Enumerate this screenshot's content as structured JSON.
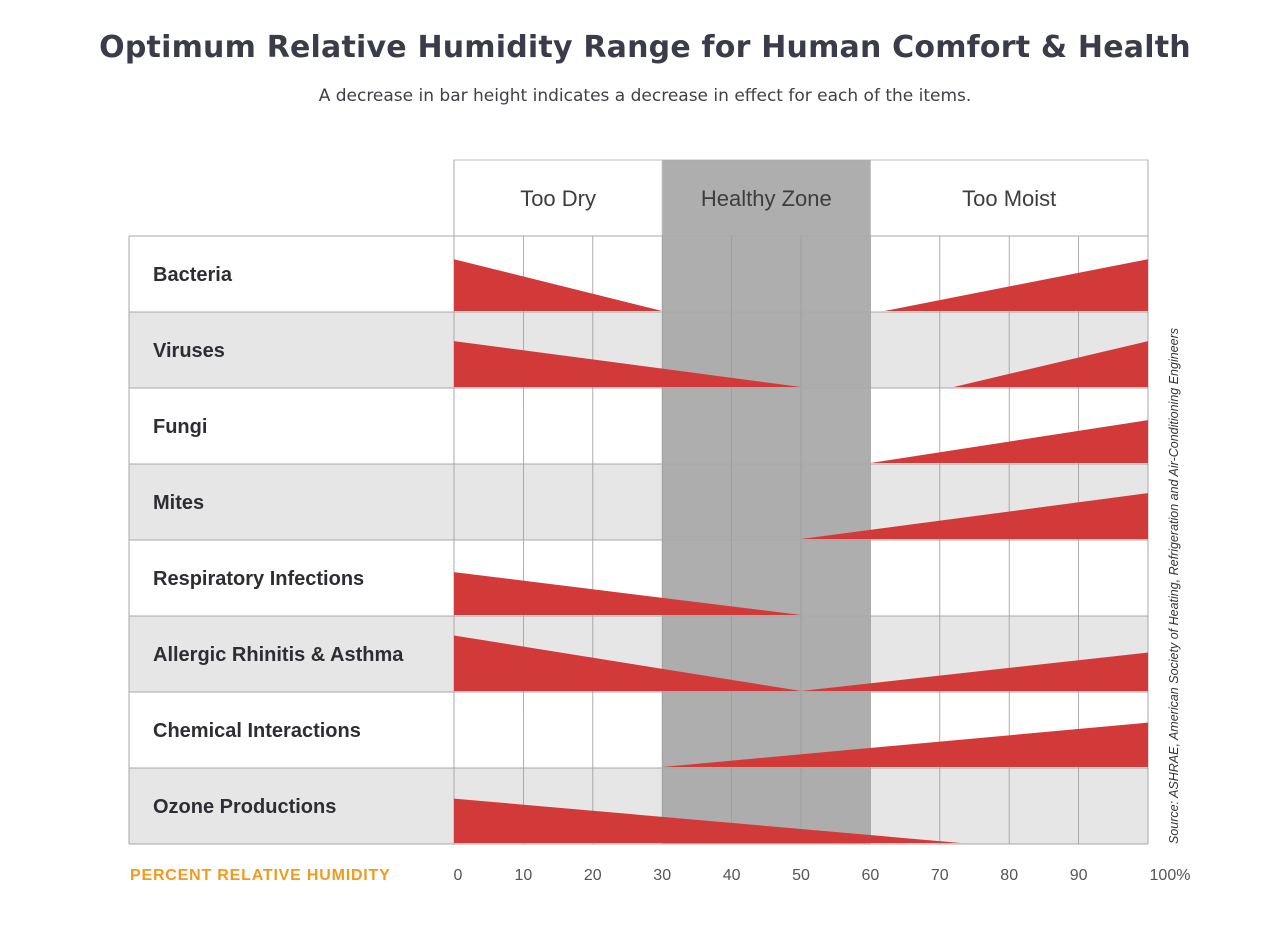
{
  "title": "Optimum Relative Humidity Range for Human Comfort & Health",
  "subtitle": "A decrease in bar height indicates a decrease in effect for each of the items.",
  "source": "Source: ASHRAE, American Society of Heating, Refrigeration and Air-Conditioning Engineers",
  "colors": {
    "bar": "#d23a3a",
    "healthy_zone": "#aaaaaa",
    "x_axis_label": "#f39a1e",
    "row_alt": "#e6e6e6"
  },
  "chart_data": {
    "type": "bar",
    "xlabel": "PERCENT RELATIVE HUMIDITY",
    "xlim": [
      0,
      100
    ],
    "x_ticks": [
      "0",
      "10",
      "20",
      "30",
      "40",
      "50",
      "60",
      "70",
      "80",
      "90",
      "100%"
    ],
    "zones": [
      {
        "label": "Too Dry",
        "from": 0,
        "to": 30
      },
      {
        "label": "Healthy Zone",
        "from": 30,
        "to": 60
      },
      {
        "label": "Too Moist",
        "from": 60,
        "to": 100
      }
    ],
    "categories": [
      "Bacteria",
      "Viruses",
      "Fungi",
      "Mites",
      "Respiratory Infections",
      "Allergic Rhinitis & Asthma",
      "Chemical Interactions",
      "Ozone Productions"
    ],
    "effect_ranges": [
      {
        "category": "Bacteria",
        "dry": {
          "start": 0,
          "end": 30,
          "level": 0.7
        },
        "moist": {
          "start": 62,
          "end": 100,
          "level": 0.7
        }
      },
      {
        "category": "Viruses",
        "dry": {
          "start": 0,
          "end": 50,
          "level": 0.62
        },
        "moist": {
          "start": 72,
          "end": 100,
          "level": 0.62
        }
      },
      {
        "category": "Fungi",
        "dry": null,
        "moist": {
          "start": 60,
          "end": 100,
          "level": 0.58
        }
      },
      {
        "category": "Mites",
        "dry": null,
        "moist": {
          "start": 50,
          "end": 100,
          "level": 0.62
        }
      },
      {
        "category": "Respiratory Infections",
        "dry": {
          "start": 0,
          "end": 50,
          "level": 0.58
        },
        "moist": null
      },
      {
        "category": "Allergic Rhinitis & Asthma",
        "dry": {
          "start": 0,
          "end": 50,
          "level": 0.75
        },
        "moist": {
          "start": 50,
          "end": 100,
          "level": 0.52
        }
      },
      {
        "category": "Chemical Interactions",
        "dry": null,
        "moist": {
          "start": 30,
          "end": 100,
          "level": 0.6
        }
      },
      {
        "category": "Ozone Productions",
        "dry": {
          "start": 0,
          "end": 73,
          "level": 0.6
        },
        "moist": null
      }
    ]
  }
}
